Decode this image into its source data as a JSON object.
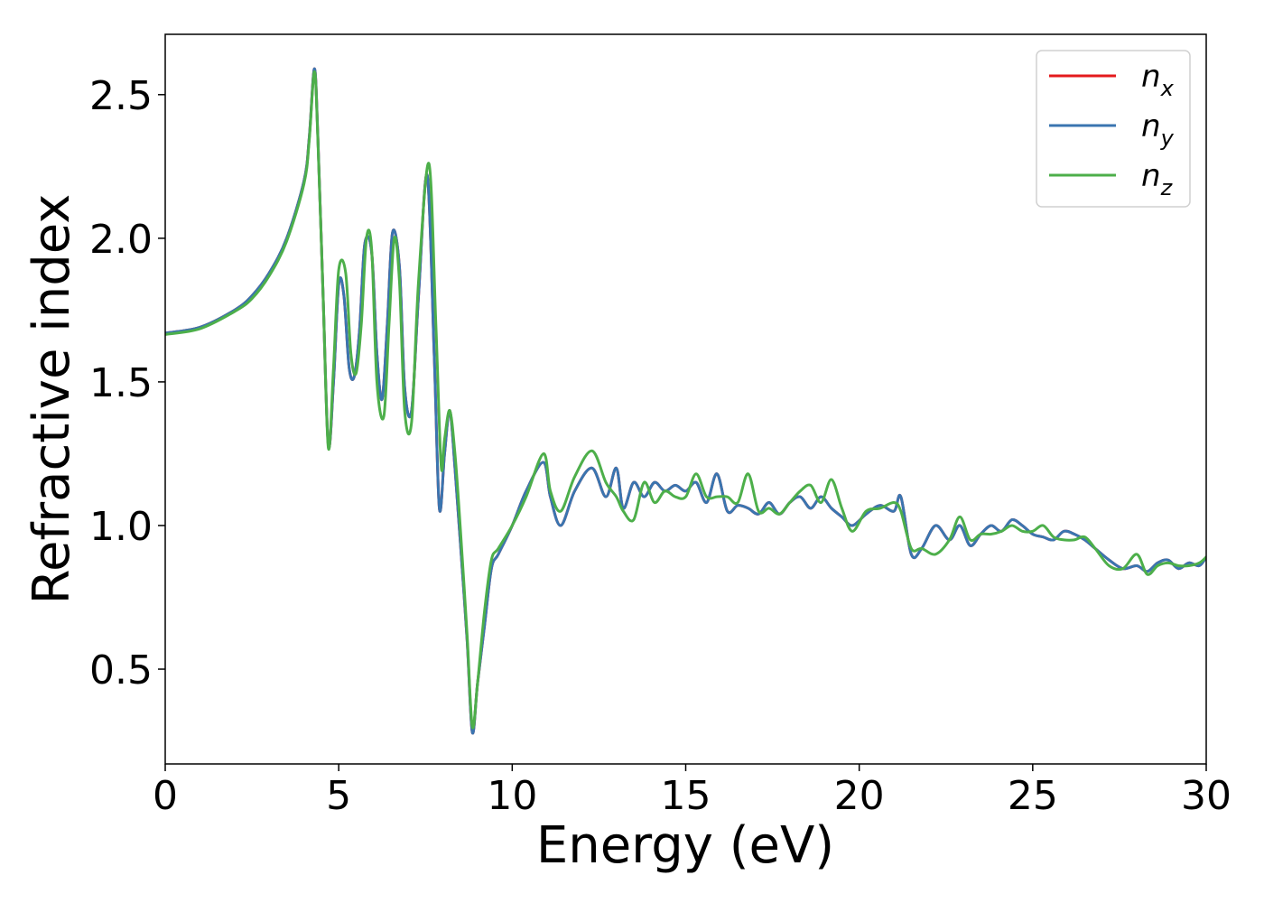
{
  "chart_data": {
    "type": "line",
    "xlabel": "Energy (eV)",
    "ylabel": "Refractive index",
    "xlim": [
      0,
      30
    ],
    "ylim": [
      0.17,
      2.71
    ],
    "xticks": [
      0,
      5,
      10,
      15,
      20,
      25,
      30
    ],
    "yticks": [
      0.5,
      1.0,
      1.5,
      2.0,
      2.5
    ],
    "xtick_labels": [
      "0",
      "5",
      "10",
      "15",
      "20",
      "25",
      "30"
    ],
    "ytick_labels": [
      "0.5",
      "1.0",
      "1.5",
      "2.0",
      "2.5"
    ],
    "grid": false,
    "legend_position": "top-right",
    "series": [
      {
        "name": "n",
        "subscript": "x",
        "color": "#e41a1c",
        "x": [
          0,
          1,
          2,
          2.5,
          3,
          3.5,
          4,
          4.15,
          4.3,
          4.4,
          4.55,
          4.7,
          4.85,
          5.0,
          5.15,
          5.3,
          5.45,
          5.6,
          5.75,
          5.95,
          6.1,
          6.25,
          6.4,
          6.55,
          6.75,
          6.9,
          7.1,
          7.3,
          7.55,
          7.75,
          7.9,
          8.05,
          8.2,
          8.35,
          8.5,
          8.7,
          8.85,
          9.0,
          9.2,
          9.4,
          9.6,
          10.0,
          10.4,
          10.9,
          11.1,
          11.4,
          11.8,
          12.3,
          12.7,
          13.0,
          13.2,
          13.5,
          13.8,
          14.1,
          14.4,
          14.7,
          15.0,
          15.3,
          15.6,
          15.9,
          16.2,
          16.5,
          16.8,
          17.1,
          17.4,
          17.7,
          18.0,
          18.3,
          18.6,
          18.9,
          19.2,
          19.5,
          19.8,
          20.2,
          20.6,
          21.0,
          21.2,
          21.5,
          21.8,
          22.2,
          22.6,
          22.9,
          23.2,
          23.5,
          23.8,
          24.1,
          24.4,
          24.7,
          25.0,
          25.3,
          25.6,
          25.9,
          26.2,
          26.5,
          26.8,
          27.2,
          27.6,
          28.0,
          28.3,
          28.6,
          28.9,
          29.2,
          29.5,
          29.8,
          30.0
        ],
        "y": [
          1.67,
          1.69,
          1.75,
          1.8,
          1.88,
          2.0,
          2.2,
          2.35,
          2.59,
          2.35,
          1.8,
          1.28,
          1.5,
          1.84,
          1.8,
          1.55,
          1.52,
          1.68,
          1.98,
          1.95,
          1.6,
          1.44,
          1.7,
          2.02,
          1.9,
          1.48,
          1.4,
          1.8,
          2.22,
          1.6,
          1.06,
          1.25,
          1.4,
          1.2,
          0.95,
          0.6,
          0.28,
          0.45,
          0.65,
          0.85,
          0.9,
          1.0,
          1.12,
          1.22,
          1.1,
          1.0,
          1.12,
          1.2,
          1.1,
          1.2,
          1.06,
          1.15,
          1.1,
          1.15,
          1.12,
          1.14,
          1.12,
          1.15,
          1.08,
          1.18,
          1.05,
          1.07,
          1.06,
          1.04,
          1.08,
          1.04,
          1.08,
          1.1,
          1.06,
          1.1,
          1.06,
          1.03,
          1.0,
          1.04,
          1.07,
          1.05,
          1.1,
          0.9,
          0.92,
          1.0,
          0.95,
          1.0,
          0.93,
          0.97,
          1.0,
          0.98,
          1.02,
          1.0,
          0.97,
          0.96,
          0.95,
          0.98,
          0.97,
          0.95,
          0.92,
          0.88,
          0.85,
          0.86,
          0.84,
          0.87,
          0.88,
          0.85,
          0.87,
          0.86,
          0.89
        ]
      },
      {
        "name": "n",
        "subscript": "y",
        "color": "#3a75b0",
        "x": [
          0,
          1,
          2,
          2.5,
          3,
          3.5,
          4,
          4.15,
          4.3,
          4.4,
          4.55,
          4.7,
          4.85,
          5.0,
          5.15,
          5.3,
          5.45,
          5.6,
          5.75,
          5.95,
          6.1,
          6.25,
          6.4,
          6.55,
          6.75,
          6.9,
          7.1,
          7.3,
          7.55,
          7.75,
          7.9,
          8.05,
          8.2,
          8.35,
          8.5,
          8.7,
          8.85,
          9.0,
          9.2,
          9.4,
          9.6,
          10.0,
          10.4,
          10.9,
          11.1,
          11.4,
          11.8,
          12.3,
          12.7,
          13.0,
          13.2,
          13.5,
          13.8,
          14.1,
          14.4,
          14.7,
          15.0,
          15.3,
          15.6,
          15.9,
          16.2,
          16.5,
          16.8,
          17.1,
          17.4,
          17.7,
          18.0,
          18.3,
          18.6,
          18.9,
          19.2,
          19.5,
          19.8,
          20.2,
          20.6,
          21.0,
          21.2,
          21.5,
          21.8,
          22.2,
          22.6,
          22.9,
          23.2,
          23.5,
          23.8,
          24.1,
          24.4,
          24.7,
          25.0,
          25.3,
          25.6,
          25.9,
          26.2,
          26.5,
          26.8,
          27.2,
          27.6,
          28.0,
          28.3,
          28.6,
          28.9,
          29.2,
          29.5,
          29.8,
          30.0
        ],
        "y": [
          1.67,
          1.69,
          1.75,
          1.8,
          1.88,
          2.0,
          2.2,
          2.35,
          2.59,
          2.35,
          1.8,
          1.28,
          1.5,
          1.84,
          1.8,
          1.55,
          1.52,
          1.68,
          1.98,
          1.95,
          1.6,
          1.44,
          1.7,
          2.02,
          1.9,
          1.48,
          1.4,
          1.8,
          2.22,
          1.6,
          1.06,
          1.25,
          1.4,
          1.2,
          0.95,
          0.6,
          0.28,
          0.45,
          0.65,
          0.85,
          0.9,
          1.0,
          1.12,
          1.22,
          1.1,
          1.0,
          1.12,
          1.2,
          1.1,
          1.2,
          1.06,
          1.15,
          1.1,
          1.15,
          1.12,
          1.14,
          1.12,
          1.15,
          1.08,
          1.18,
          1.05,
          1.07,
          1.06,
          1.04,
          1.08,
          1.04,
          1.08,
          1.1,
          1.06,
          1.1,
          1.06,
          1.03,
          1.0,
          1.04,
          1.07,
          1.05,
          1.1,
          0.9,
          0.92,
          1.0,
          0.95,
          1.0,
          0.93,
          0.97,
          1.0,
          0.98,
          1.02,
          1.0,
          0.97,
          0.96,
          0.95,
          0.98,
          0.97,
          0.95,
          0.92,
          0.88,
          0.85,
          0.86,
          0.84,
          0.87,
          0.88,
          0.85,
          0.87,
          0.86,
          0.89
        ]
      },
      {
        "name": "n",
        "subscript": "z",
        "color": "#4daf4a",
        "x": [
          0,
          1,
          2,
          2.5,
          3,
          3.5,
          4,
          4.15,
          4.3,
          4.4,
          4.55,
          4.7,
          4.85,
          5.0,
          5.2,
          5.35,
          5.5,
          5.65,
          5.8,
          5.95,
          6.1,
          6.3,
          6.45,
          6.6,
          6.75,
          6.9,
          7.1,
          7.3,
          7.6,
          7.8,
          7.95,
          8.05,
          8.2,
          8.35,
          8.5,
          8.7,
          8.85,
          9.0,
          9.2,
          9.4,
          9.6,
          10.0,
          10.4,
          10.9,
          11.1,
          11.4,
          11.8,
          12.3,
          12.7,
          13.0,
          13.2,
          13.5,
          13.8,
          14.1,
          14.4,
          14.7,
          15.0,
          15.3,
          15.6,
          15.9,
          16.2,
          16.5,
          16.8,
          17.1,
          17.4,
          17.7,
          18.0,
          18.3,
          18.6,
          18.9,
          19.2,
          19.5,
          19.8,
          20.2,
          20.6,
          21.0,
          21.2,
          21.5,
          21.8,
          22.2,
          22.6,
          22.9,
          23.2,
          23.5,
          23.8,
          24.1,
          24.4,
          24.7,
          25.0,
          25.3,
          25.6,
          25.9,
          26.2,
          26.5,
          26.8,
          27.2,
          27.6,
          28.0,
          28.3,
          28.6,
          28.9,
          29.2,
          29.5,
          29.8,
          30.0
        ],
        "y": [
          1.665,
          1.685,
          1.745,
          1.79,
          1.87,
          1.99,
          2.19,
          2.34,
          2.58,
          2.34,
          1.8,
          1.27,
          1.55,
          1.89,
          1.88,
          1.6,
          1.53,
          1.7,
          2.0,
          1.96,
          1.5,
          1.38,
          1.7,
          2.0,
          1.85,
          1.4,
          1.36,
          1.85,
          2.26,
          1.7,
          1.21,
          1.3,
          1.4,
          1.25,
          1.0,
          0.62,
          0.3,
          0.45,
          0.7,
          0.88,
          0.92,
          1.0,
          1.1,
          1.25,
          1.12,
          1.05,
          1.17,
          1.26,
          1.15,
          1.1,
          1.05,
          1.02,
          1.15,
          1.08,
          1.12,
          1.1,
          1.1,
          1.18,
          1.1,
          1.1,
          1.1,
          1.08,
          1.18,
          1.05,
          1.06,
          1.04,
          1.08,
          1.12,
          1.14,
          1.08,
          1.16,
          1.06,
          0.98,
          1.05,
          1.06,
          1.08,
          1.05,
          0.92,
          0.92,
          0.9,
          0.95,
          1.03,
          0.95,
          0.97,
          0.97,
          0.98,
          1.0,
          0.98,
          0.98,
          1.0,
          0.96,
          0.95,
          0.95,
          0.96,
          0.92,
          0.86,
          0.85,
          0.9,
          0.83,
          0.86,
          0.87,
          0.86,
          0.86,
          0.87,
          0.89
        ]
      }
    ]
  }
}
